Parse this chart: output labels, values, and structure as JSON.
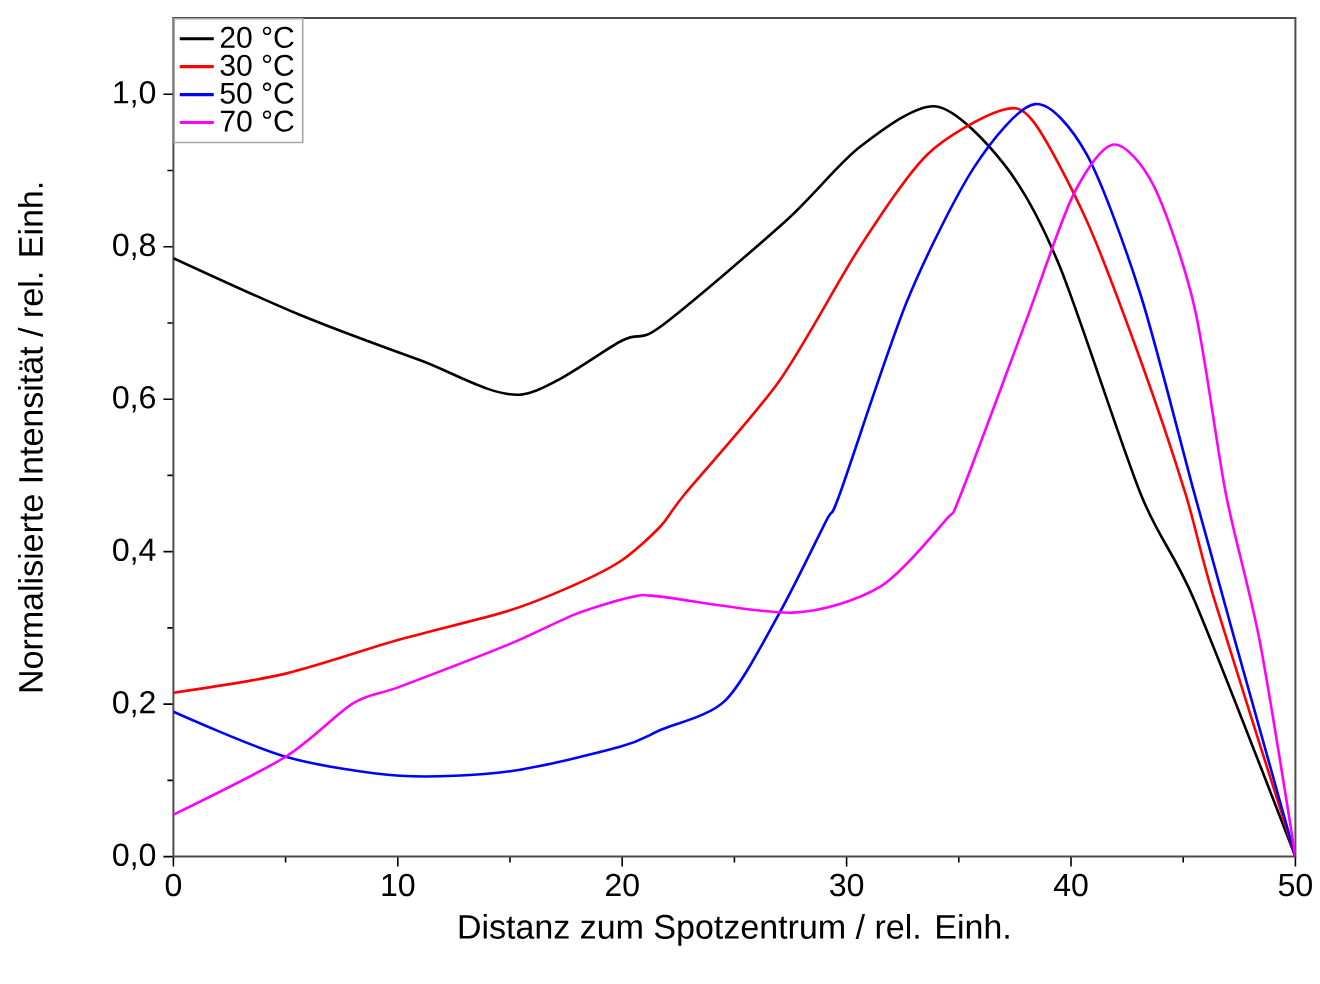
{
  "chart_data": {
    "type": "line",
    "xlabel": "Distanz zum Spotzentrum / rel. Einh.",
    "ylabel": "Normalisierte Intensität / rel. Einh.",
    "xlim": [
      0,
      50
    ],
    "xticks": [
      0,
      10,
      20,
      30,
      40,
      50
    ],
    "ylim": [
      0,
      1.1
    ],
    "yticks": [
      {
        "value": 0,
        "label": "0,0"
      },
      {
        "value": 0.2,
        "label": "0,2"
      },
      {
        "value": 0.4,
        "label": "0,4"
      },
      {
        "value": 0.6,
        "label": "0,6"
      },
      {
        "value": 0.8,
        "label": "0,8"
      },
      {
        "value": 1.0,
        "label": "1,0"
      }
    ],
    "grid": false,
    "legend": "top left",
    "marker": "none",
    "line_style": "solid",
    "series": [
      {
        "name": "20 °C",
        "color": "#000000",
        "x": [
          0,
          5.6,
          11,
          15.5,
          20,
          21.7,
          27.3,
          30.6,
          34,
          37.1,
          39.5,
          43.1,
          45.5,
          50
        ],
        "values": [
          0.785,
          0.711,
          0.651,
          0.606,
          0.677,
          0.695,
          0.834,
          0.931,
          0.984,
          0.905,
          0.774,
          0.476,
          0.336,
          0
        ]
      },
      {
        "name": "30 °C",
        "color": "#ff0000",
        "x": [
          0,
          5,
          10,
          15,
          18,
          20,
          21.7,
          22.8,
          27,
          30.6,
          33.6,
          36.8,
          38.3,
          40.7,
          43.1,
          45.1,
          46.4,
          50
        ],
        "values": [
          0.215,
          0.24,
          0.284,
          0.323,
          0.358,
          0.389,
          0.433,
          0.476,
          0.624,
          0.8,
          0.921,
          0.978,
          0.965,
          0.834,
          0.651,
          0.476,
          0.336,
          0
        ]
      },
      {
        "name": "50 °C",
        "color": "#0000ff",
        "x": [
          0,
          5,
          10.1,
          15,
          19.9,
          21.7,
          24.6,
          27,
          29.1,
          29.7,
          32.7,
          35.7,
          38.4,
          40.7,
          43.1,
          45.5,
          47.3,
          50
        ],
        "values": [
          0.19,
          0.131,
          0.106,
          0.112,
          0.144,
          0.166,
          0.205,
          0.319,
          0.441,
          0.476,
          0.729,
          0.905,
          0.987,
          0.921,
          0.737,
          0.476,
          0.284,
          0
        ]
      },
      {
        "name": "70 °C",
        "color": "#ff00ff",
        "x": [
          0,
          5,
          8,
          10.1,
          15,
          18,
          20.5,
          21.7,
          27.6,
          31.5,
          34.4,
          35.1,
          38,
          40.1,
          41.9,
          43.7,
          45.5,
          46.9,
          48.4,
          50
        ],
        "values": [
          0.055,
          0.131,
          0.201,
          0.223,
          0.279,
          0.319,
          0.341,
          0.341,
          0.32,
          0.354,
          0.441,
          0.476,
          0.703,
          0.868,
          0.934,
          0.879,
          0.721,
          0.476,
          0.284,
          0
        ]
      }
    ]
  }
}
